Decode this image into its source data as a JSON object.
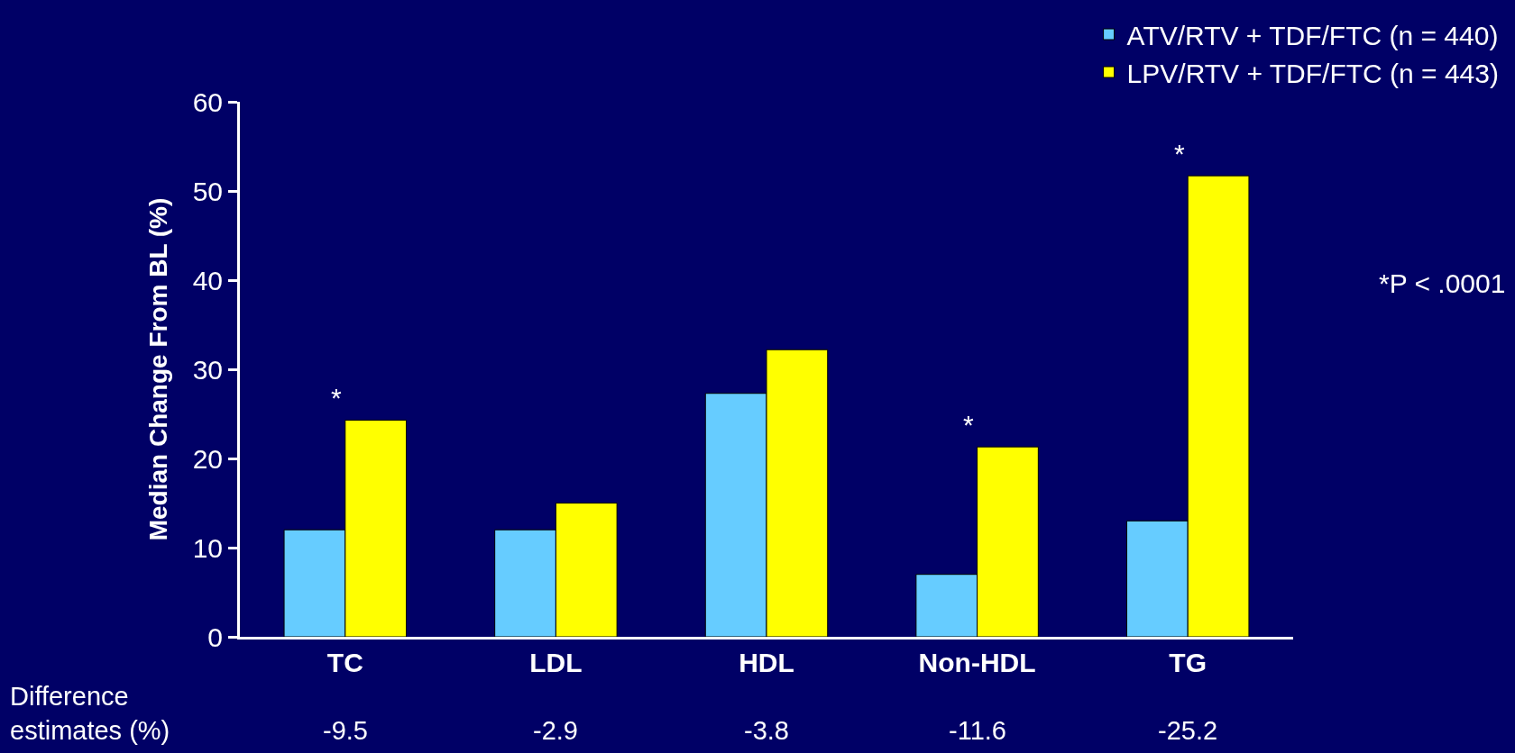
{
  "chart_data": {
    "type": "bar",
    "ylabel": "Median Change From BL (%)",
    "categories": [
      "TC",
      "LDL",
      "HDL",
      "Non-HDL",
      "TG"
    ],
    "series": [
      {
        "name": "ATV/RTV + TDF/FTC (n = 440)",
        "color": "#66ccff",
        "values": [
          12,
          12,
          27.3,
          7,
          13
        ]
      },
      {
        "name": "LPV/RTV + TDF/FTC (n = 443)",
        "color": "#ffff00",
        "values": [
          24.3,
          15,
          32.2,
          21.3,
          51.7
        ]
      }
    ],
    "ylim": [
      0,
      60
    ],
    "yticks": [
      0,
      10,
      20,
      30,
      40,
      50,
      60
    ],
    "grid": false,
    "legend": "top right",
    "annotations": [
      "Difference\nestimates (%)",
      "*P < .0001",
      "-9.5",
      "-2.9",
      "-3.8",
      "-11.6",
      "-25.2",
      {
        "text": "*",
        "x": "TC",
        "y": 24.3
      },
      {
        "text": "*",
        "x": "Non-HDL",
        "y": 21.3
      },
      {
        "text": "*",
        "x": "TG",
        "y": 51.7
      }
    ]
  }
}
